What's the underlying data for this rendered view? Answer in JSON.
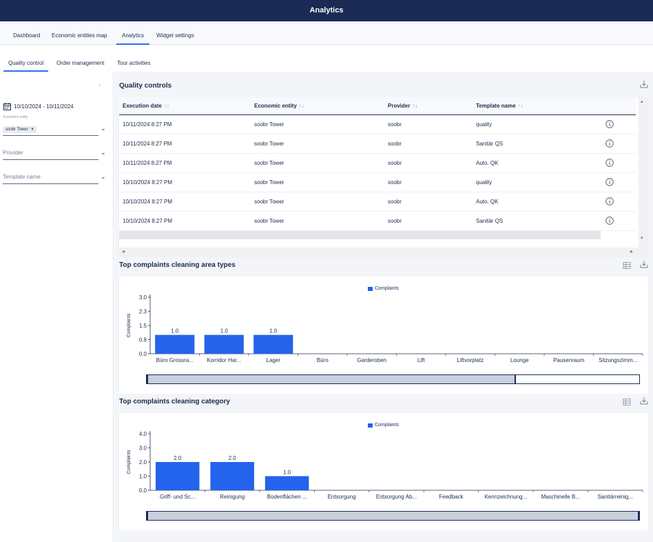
{
  "app": {
    "title": "Analytics"
  },
  "nav_primary": [
    {
      "label": "Dashboard"
    },
    {
      "label": "Economic entities map"
    },
    {
      "label": "Analytics"
    },
    {
      "label": "Widget settings"
    }
  ],
  "nav_secondary": [
    {
      "label": "Quality control"
    },
    {
      "label": "Order management"
    },
    {
      "label": "Tour activities"
    }
  ],
  "filters": {
    "date_range": "10/10/2024 - 10/11/2024",
    "economic_entity_label": "Economic entity",
    "economic_entity_chip": "soobr Tower",
    "chip_remove": "×",
    "provider_placeholder": "Provider",
    "template_placeholder": "Template name"
  },
  "quality_controls": {
    "title": "Quality controls",
    "columns": [
      "Execution date",
      "Economic entity",
      "Provider",
      "Template name"
    ],
    "sort_glyph": "↑↓",
    "rows": [
      [
        "10/11/2024 8:27 PM",
        "soobr Tower",
        "soobr",
        "quality"
      ],
      [
        "10/11/2024 8:27 PM",
        "soobr Tower",
        "soobr",
        "Sanitär QS"
      ],
      [
        "10/11/2024 8:27 PM",
        "soobr Tower",
        "soobr",
        "Auto. QK"
      ],
      [
        "10/10/2024 8:27 PM",
        "soobr Tower",
        "soobr",
        "quality"
      ],
      [
        "10/10/2024 8:27 PM",
        "soobr Tower",
        "soobr",
        "Auto. QK"
      ],
      [
        "10/10/2024 8:27 PM",
        "soobr Tower",
        "soobr",
        "Sanitär QS"
      ]
    ]
  },
  "chart_data": [
    {
      "type": "bar",
      "title": "Top complaints cleaning area types",
      "ylabel": "Complaints",
      "legend": "top-center",
      "series": [
        {
          "name": "Complaints",
          "values": [
            1.0,
            1.0,
            1.0,
            0,
            0,
            0,
            0,
            0,
            0,
            0
          ]
        }
      ],
      "categories": [
        "Büro Grossra...",
        "Korridor Har...",
        "Lager",
        "Büro",
        "Garderoben",
        "Lift",
        "Liftvorplatz",
        "Lounge",
        "Pausenraum",
        "Sitzungszimm..."
      ],
      "data_labels": [
        "1.0",
        "1.0",
        "1.0"
      ],
      "yticks": [
        "0.0",
        "0.8",
        "1.5",
        "2.3",
        "3.0"
      ],
      "ylim": [
        0,
        3.0
      ],
      "color": "#2463eb",
      "zoom_fraction": 0.75
    },
    {
      "type": "bar",
      "title": "Top complaints cleaning category",
      "ylabel": "Complaints",
      "legend": "top-center",
      "series": [
        {
          "name": "Complaints",
          "values": [
            2.0,
            2.0,
            1.0,
            0,
            0,
            0,
            0,
            0,
            0
          ]
        }
      ],
      "categories": [
        "Griff- und Sc...",
        "Reinigung",
        "Bodenflächen ...",
        "Entsorgung",
        "Entsorgung Ab...",
        "Feedback",
        "Kennzeichnung...",
        "Maschinelle B...",
        "Sanitärreinig..."
      ],
      "data_labels": [
        "2.0",
        "2.0",
        "1.0"
      ],
      "yticks": [
        "0.0",
        "1.0",
        "2.0",
        "3.0",
        "4.0"
      ],
      "ylim": [
        0,
        4.0
      ],
      "color": "#2463eb",
      "zoom_fraction": 1.0
    }
  ]
}
